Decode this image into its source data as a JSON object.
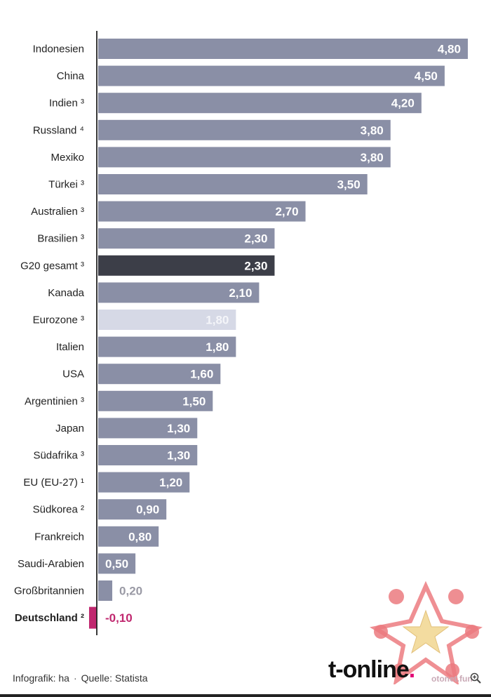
{
  "chart_data": {
    "type": "bar",
    "orientation": "horizontal",
    "categories": [
      "Indonesien",
      "China",
      "Indien ³",
      "Russland ⁴",
      "Mexiko",
      "Türkei ³",
      "Australien ³",
      "Brasilien ³",
      "G20 gesamt ³",
      "Kanada",
      "Eurozone ³",
      "Italien",
      "USA",
      "Argentinien ³",
      "Japan",
      "Südafrika ³",
      "EU (EU-27) ¹",
      "Südkorea ²",
      "Frankreich",
      "Saudi-Arabien",
      "Großbritannien",
      "Deutschland ²"
    ],
    "values": [
      4.8,
      4.5,
      4.2,
      3.8,
      3.8,
      3.5,
      2.7,
      2.3,
      2.3,
      2.1,
      1.8,
      1.8,
      1.6,
      1.5,
      1.3,
      1.3,
      1.2,
      0.9,
      0.8,
      0.5,
      0.2,
      -0.1
    ],
    "value_labels": [
      "4,80",
      "4,50",
      "4,20",
      "3,80",
      "3,80",
      "3,50",
      "2,70",
      "2,30",
      "2,30",
      "2,10",
      "1,80",
      "1,80",
      "1,60",
      "1,50",
      "1,30",
      "1,30",
      "1,20",
      "0,90",
      "0,80",
      "0,50",
      "0,20",
      "-0,10"
    ],
    "highlight": {
      "G20 gesamt ³": "dark",
      "Eurozone ³": "light",
      "Deutschland ²": "negative"
    },
    "xlim": [
      -0.1,
      5.0
    ],
    "grid": false,
    "title": "",
    "xlabel": "",
    "ylabel": ""
  },
  "colors": {
    "bar": "#8a8fa6",
    "bar_dark": "#3c3e48",
    "bar_light": "#d6d9e6",
    "negative": "#c0286f",
    "label": "#222222",
    "label_light": "#a8aab5"
  },
  "footer": {
    "credit": "Infografik: ha",
    "separator": "·",
    "source": "Quelle: Statista"
  },
  "logo": {
    "text": "t-online",
    "dot": "."
  },
  "watermark": {
    "text": "otonet.fun"
  },
  "icons": {
    "zoom": "zoom-in-icon"
  }
}
